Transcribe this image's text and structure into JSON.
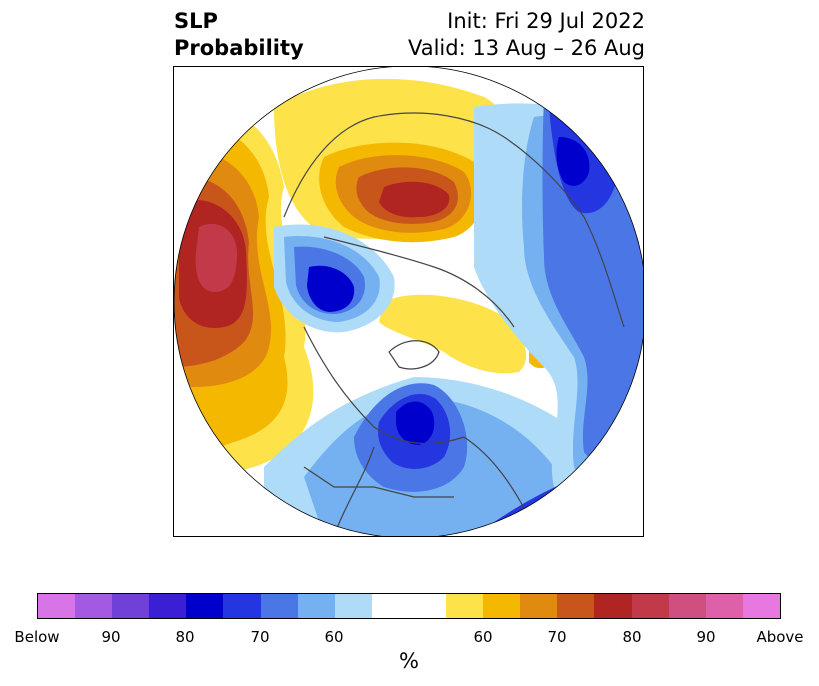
{
  "title": {
    "left_line1": "SLP",
    "left_line2": "Probability",
    "right_line1": "Init: Fri 29 Jul 2022",
    "right_line2": "Valid: 13 Aug – 26 Aug"
  },
  "map": {
    "projection": "north-polar-stereographic",
    "field": "SLP probability tercile",
    "regions": [
      {
        "area": "North Pacific",
        "category": "Above",
        "peak_percent": 85
      },
      {
        "area": "Central Siberia",
        "category": "Above",
        "peak_percent": 80
      },
      {
        "area": "Arctic Ocean / Greenland",
        "category": "Above",
        "peak_percent": 65
      },
      {
        "area": "Hudson Bay",
        "category": "Below",
        "peak_percent": 80
      },
      {
        "area": "Bering Sea / Alaska",
        "category": "Below",
        "peak_percent": 75
      },
      {
        "area": "Europe",
        "category": "Below",
        "peak_percent": 70
      },
      {
        "area": "North Atlantic",
        "category": "Below",
        "peak_percent": 75
      }
    ]
  },
  "colorbar": {
    "below_colors": [
      "#d774e6",
      "#a45ae0",
      "#7040d8",
      "#3b1fd4",
      "#0000cc",
      "#2436e0",
      "#4a76e6",
      "#75b0f0",
      "#aedcf8"
    ],
    "neutral_color": "#ffffff",
    "above_colors": [
      "#fde24a",
      "#f4b800",
      "#e08a10",
      "#c8561a",
      "#b02422",
      "#c23a4a",
      "#cf4f80",
      "#de60a8",
      "#e678e0"
    ],
    "tick_labels": [
      "Below",
      "90",
      "80",
      "70",
      "60",
      "60",
      "70",
      "80",
      "90",
      "Above"
    ],
    "unit": "%"
  }
}
